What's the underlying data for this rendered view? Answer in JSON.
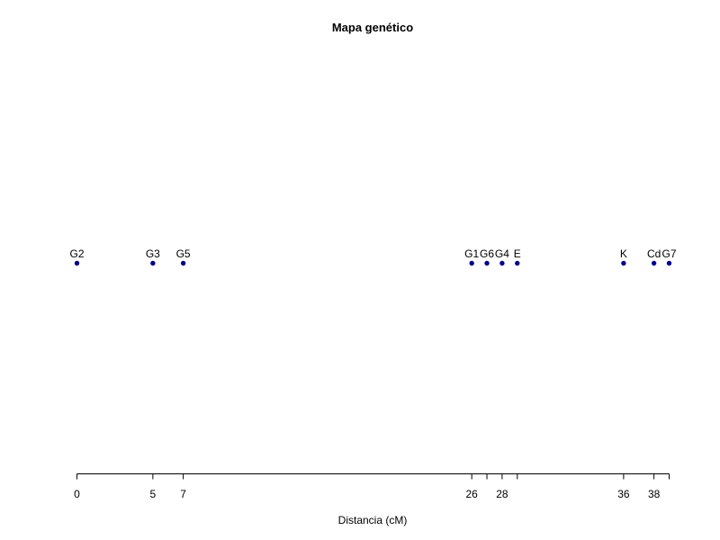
{
  "chart_data": {
    "type": "scatter",
    "title": "Mapa genético",
    "xlabel": "Distancia (cM)",
    "ylabel": "",
    "xlim": [
      0,
      39
    ],
    "grid": false,
    "point_color": "#00008B",
    "points": [
      {
        "label": "G2",
        "x": 0
      },
      {
        "label": "G3",
        "x": 5
      },
      {
        "label": "G5",
        "x": 7
      },
      {
        "label": "G1",
        "x": 26
      },
      {
        "label": "G6",
        "x": 27
      },
      {
        "label": "G4",
        "x": 28
      },
      {
        "label": "E",
        "x": 29
      },
      {
        "label": "K",
        "x": 36
      },
      {
        "label": "Cd",
        "x": 38
      },
      {
        "label": "G7",
        "x": 39
      }
    ],
    "ticks": [
      0,
      5,
      7,
      26,
      27,
      28,
      29,
      36,
      38,
      39
    ],
    "tick_labels": [
      "0",
      "5",
      "7",
      "26",
      "",
      "28",
      "",
      "36",
      "38",
      ""
    ]
  }
}
